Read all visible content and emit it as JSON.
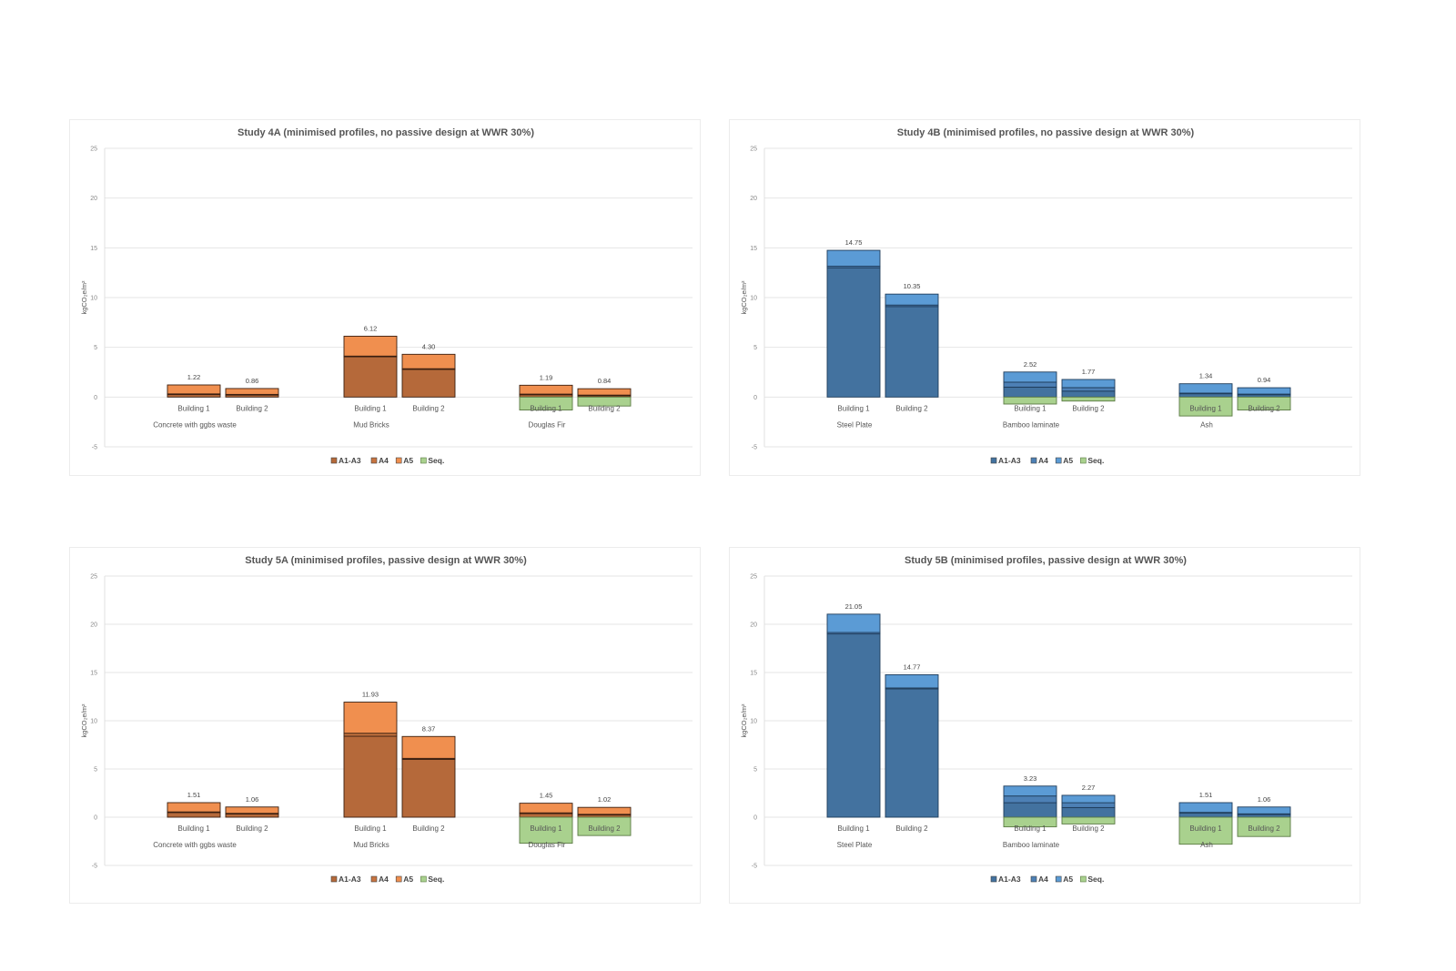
{
  "chart_data": [
    {
      "type": "bar",
      "stacked": true,
      "title": "Study 4A (minimised profiles, no passive design at WWR 30%)",
      "ylabel": "kgCO₂e/m²",
      "xlabel": "",
      "ylim": [
        -5,
        25
      ],
      "yticks": [
        25,
        20,
        15,
        10,
        5,
        0,
        -5
      ],
      "grid": true,
      "legend_position": "bottom",
      "palette": "orange",
      "groups": [
        "Concrete with ggbs waste",
        "Mud Bricks",
        "Douglas Fir"
      ],
      "categories": [
        "Building 1",
        "Building 2"
      ],
      "series": [
        {
          "name": "A1-A3",
          "color": "#b5693a",
          "values": [
            [
              0.3,
              0.25
            ],
            [
              4.1,
              2.8
            ],
            [
              0.25,
              0.15
            ]
          ]
        },
        {
          "name": "A4",
          "color": "#c77440",
          "values": [
            [
              0.02,
              0.02
            ],
            [
              0.02,
              0.05
            ],
            [
              0.05,
              0.05
            ]
          ]
        },
        {
          "name": "A5",
          "color": "#f08f4f",
          "values": [
            [
              0.9,
              0.59
            ],
            [
              2.0,
              1.45
            ],
            [
              0.89,
              0.64
            ]
          ]
        },
        {
          "name": "Seq.",
          "color": "#a9d18e",
          "values": [
            [
              0,
              0
            ],
            [
              0,
              0
            ],
            [
              -1.3,
              -0.9
            ]
          ]
        }
      ],
      "data_labels": [
        [
          "1.22",
          "0.86"
        ],
        [
          "6.12",
          "4.30"
        ],
        [
          "1.19",
          "0.84"
        ]
      ]
    },
    {
      "type": "bar",
      "stacked": true,
      "title": "Study 4B (minimised profiles, no passive design at WWR 30%)",
      "ylabel": "kgCO₂e/m²",
      "xlabel": "",
      "ylim": [
        -5,
        25
      ],
      "yticks": [
        25,
        20,
        15,
        10,
        5,
        0,
        -5
      ],
      "grid": true,
      "legend_position": "bottom",
      "palette": "blue",
      "groups": [
        "Steel Plate",
        "Bamboo laminate",
        "Ash"
      ],
      "categories": [
        "Building 1",
        "Building 2"
      ],
      "series": [
        {
          "name": "A1-A3",
          "color": "#43729f",
          "values": [
            [
              13.0,
              9.1
            ],
            [
              1.0,
              0.6
            ],
            [
              0.35,
              0.25
            ]
          ]
        },
        {
          "name": "A4",
          "color": "#4d80b5",
          "values": [
            [
              0.15,
              0.15
            ],
            [
              0.5,
              0.35
            ],
            [
              0.05,
              0.05
            ]
          ]
        },
        {
          "name": "A5",
          "color": "#5b9bd5",
          "values": [
            [
              1.6,
              1.1
            ],
            [
              1.02,
              0.82
            ],
            [
              0.94,
              0.64
            ]
          ]
        },
        {
          "name": "Seq.",
          "color": "#a9d18e",
          "values": [
            [
              0,
              0
            ],
            [
              -0.7,
              -0.4
            ],
            [
              -1.9,
              -1.3
            ]
          ]
        }
      ],
      "data_labels": [
        [
          "14.75",
          "10.35"
        ],
        [
          "2.52",
          "1.77"
        ],
        [
          "1.34",
          "0.94"
        ]
      ]
    },
    {
      "type": "bar",
      "stacked": true,
      "title": "Study 5A (minimised profiles, passive design at WWR 30%)",
      "ylabel": "kgCO₂e/m²",
      "xlabel": "",
      "ylim": [
        -5,
        25
      ],
      "yticks": [
        25,
        20,
        15,
        10,
        5,
        0,
        -5
      ],
      "grid": true,
      "legend_position": "bottom",
      "palette": "orange",
      "groups": [
        "Concrete with ggbs waste",
        "Mud Bricks",
        "Douglas Fir"
      ],
      "categories": [
        "Building 1",
        "Building 2"
      ],
      "series": [
        {
          "name": "A1-A3",
          "color": "#b5693a",
          "values": [
            [
              0.5,
              0.35
            ],
            [
              8.4,
              6.0
            ],
            [
              0.4,
              0.25
            ]
          ]
        },
        {
          "name": "A4",
          "color": "#c77440",
          "values": [
            [
              0.05,
              0.05
            ],
            [
              0.3,
              0.1
            ],
            [
              0.05,
              0.05
            ]
          ]
        },
        {
          "name": "A5",
          "color": "#f08f4f",
          "values": [
            [
              0.96,
              0.66
            ],
            [
              3.23,
              2.27
            ],
            [
              1.0,
              0.72
            ]
          ]
        },
        {
          "name": "Seq.",
          "color": "#a9d18e",
          "values": [
            [
              0,
              0
            ],
            [
              0,
              0
            ],
            [
              -2.7,
              -1.9
            ]
          ]
        }
      ],
      "data_labels": [
        [
          "1.51",
          "1.06"
        ],
        [
          "11.93",
          "8.37"
        ],
        [
          "1.45",
          "1.02"
        ]
      ]
    },
    {
      "type": "bar",
      "stacked": true,
      "title": "Study 5B (minimised profiles, passive design at WWR 30%)",
      "ylabel": "kgCO₂e/m²",
      "xlabel": "",
      "ylim": [
        -5,
        25
      ],
      "yticks": [
        25,
        20,
        15,
        10,
        5,
        0,
        -5
      ],
      "grid": true,
      "legend_position": "bottom",
      "palette": "blue",
      "groups": [
        "Steel Plate",
        "Bamboo laminate",
        "Ash"
      ],
      "categories": [
        "Building 1",
        "Building 2"
      ],
      "series": [
        {
          "name": "A1-A3",
          "color": "#43729f",
          "values": [
            [
              19.0,
              13.3
            ],
            [
              1.5,
              1.0
            ],
            [
              0.45,
              0.3
            ]
          ]
        },
        {
          "name": "A4",
          "color": "#4d80b5",
          "values": [
            [
              0.15,
              0.1
            ],
            [
              0.7,
              0.5
            ],
            [
              0.05,
              0.05
            ]
          ]
        },
        {
          "name": "A5",
          "color": "#5b9bd5",
          "values": [
            [
              1.9,
              1.37
            ],
            [
              1.03,
              0.77
            ],
            [
              1.01,
              0.71
            ]
          ]
        },
        {
          "name": "Seq.",
          "color": "#a9d18e",
          "values": [
            [
              0,
              0
            ],
            [
              -1.0,
              -0.7
            ],
            [
              -2.8,
              -2.0
            ]
          ]
        }
      ],
      "data_labels": [
        [
          "21.05",
          "14.77"
        ],
        [
          "3.23",
          "2.27"
        ],
        [
          "1.51",
          "1.06"
        ]
      ]
    }
  ]
}
